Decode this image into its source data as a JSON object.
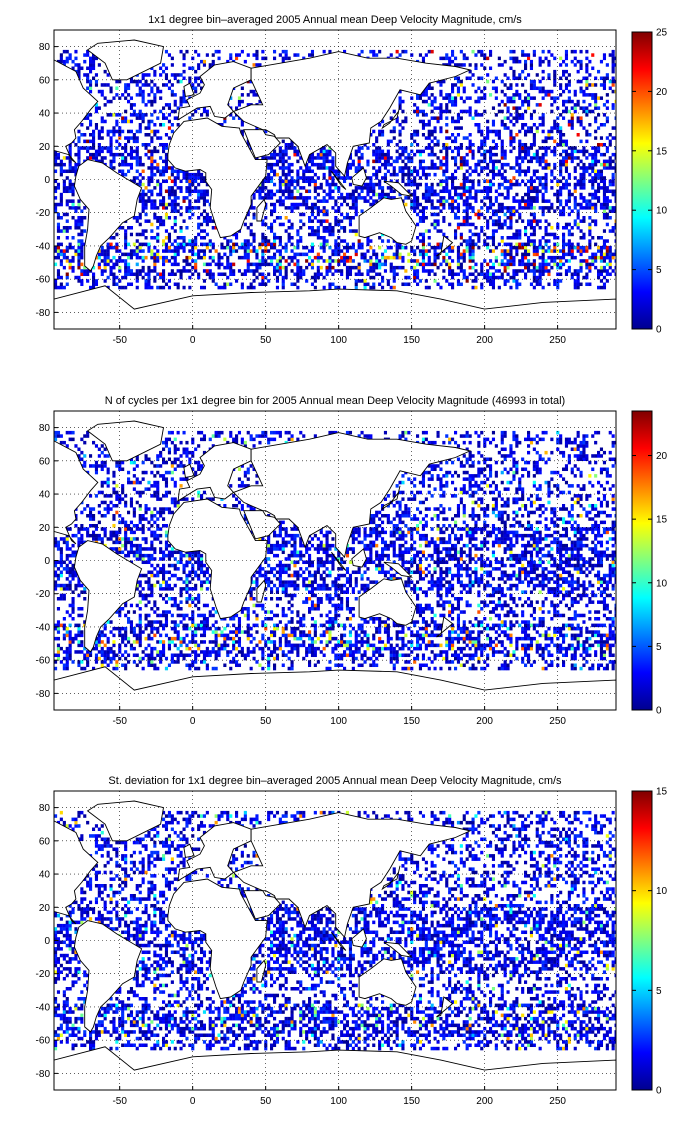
{
  "chart_data": [
    {
      "type": "heatmap",
      "title": "1x1 degree bin–averaged 2005 Annual mean Deep Velocity Magnitude, cm/s",
      "xlabel": "",
      "ylabel": "",
      "xlim": [
        -95,
        290
      ],
      "ylim": [
        -90,
        90
      ],
      "xticks": [
        "-50",
        "0",
        "50",
        "100",
        "150",
        "200",
        "250"
      ],
      "yticks": [
        "80",
        "60",
        "40",
        "20",
        "0",
        "-20",
        "-40",
        "-60",
        "-80"
      ],
      "colorbar": {
        "min": 0,
        "max": 25,
        "ticks": [
          "25",
          "20",
          "15",
          "10",
          "5",
          "0"
        ]
      },
      "grid": true
    },
    {
      "type": "heatmap",
      "title": "N of cycles per 1x1 degree bin for 2005 Annual mean Deep Velocity Magnitude (46993 in total)",
      "xlabel": "",
      "ylabel": "",
      "xlim": [
        -95,
        290
      ],
      "ylim": [
        -90,
        90
      ],
      "xticks": [
        "-50",
        "0",
        "50",
        "100",
        "150",
        "200",
        "250"
      ],
      "yticks": [
        "80",
        "60",
        "40",
        "20",
        "0",
        "-20",
        "-40",
        "-60",
        "-80"
      ],
      "colorbar": {
        "min": 0,
        "max": 23.5,
        "ticks": [
          "20",
          "15",
          "10",
          "5",
          "0"
        ]
      },
      "grid": true
    },
    {
      "type": "heatmap",
      "title": "St. deviation for 1x1 degree bin–averaged 2005 Annual mean Deep Velocity Magnitude, cm/s",
      "xlabel": "",
      "ylabel": "",
      "xlim": [
        -95,
        290
      ],
      "ylim": [
        -90,
        90
      ],
      "xticks": [
        "-50",
        "0",
        "50",
        "100",
        "150",
        "200",
        "250"
      ],
      "yticks": [
        "80",
        "60",
        "40",
        "20",
        "0",
        "-20",
        "-40",
        "-60",
        "-80"
      ],
      "colorbar": {
        "min": 0,
        "max": 15,
        "ticks": [
          "15",
          "10",
          "5",
          "0"
        ]
      },
      "grid": true
    }
  ]
}
